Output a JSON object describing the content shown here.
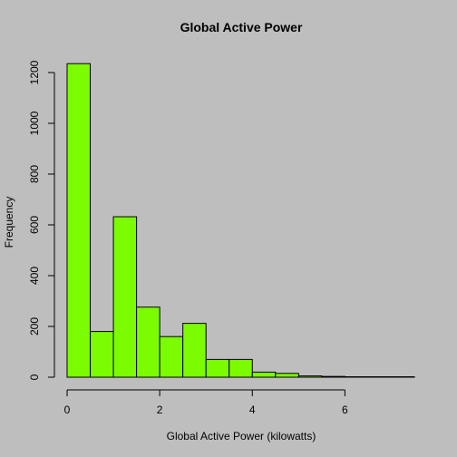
{
  "chart_data": {
    "type": "bar",
    "title": "Global Active Power",
    "xlabel": "Global Active Power (kilowatts)",
    "ylabel": "Frequency",
    "bin_width": 0.5,
    "bin_starts": [
      0,
      0.5,
      1.0,
      1.5,
      2.0,
      2.5,
      3.0,
      3.5,
      4.0,
      4.5,
      5.0,
      5.5,
      6.0,
      6.5,
      7.0
    ],
    "values": [
      1235,
      180,
      632,
      276,
      160,
      212,
      70,
      70,
      20,
      15,
      5,
      3,
      0,
      1,
      1
    ],
    "xlim": [
      0,
      7.5
    ],
    "ylim": [
      0,
      1250
    ],
    "xticks": [
      0,
      2,
      4,
      6
    ],
    "xtick_labels": [
      "0",
      "2",
      "4",
      "6"
    ],
    "yticks": [
      0,
      200,
      400,
      600,
      800,
      1000,
      1200
    ],
    "ytick_labels": [
      "0",
      "200",
      "400",
      "600",
      "800",
      "1000",
      "1200"
    ],
    "bar_color": "#7cfc00",
    "background": "#bebebe",
    "grid": false
  }
}
